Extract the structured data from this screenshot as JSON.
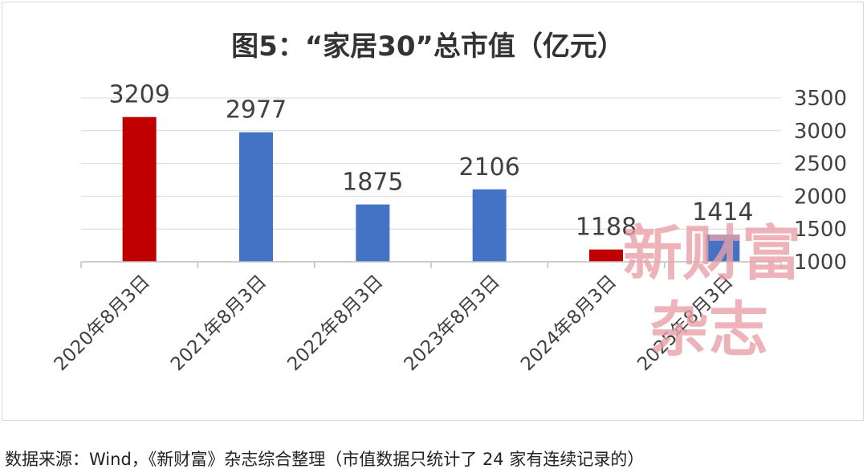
{
  "chart_data": {
    "type": "bar",
    "title": "图5：“家居30”总市值（亿元）",
    "categories": [
      "2020年8月3日",
      "2021年8月3日",
      "2022年8月3日",
      "2023年8月3日",
      "2024年8月3日",
      "2025年8月3日"
    ],
    "values": [
      3209,
      2977,
      1875,
      2106,
      1188,
      1414
    ],
    "data_labels": [
      "3209",
      "2977",
      "1875",
      "2106",
      "1188",
      "1414"
    ],
    "bar_colors": [
      "#c00000",
      "#4472c4",
      "#4472c4",
      "#4472c4",
      "#c00000",
      "#4472c4"
    ],
    "y_ticks": [
      1000,
      1500,
      2000,
      2500,
      3000,
      3500
    ],
    "ylim": [
      1000,
      3500
    ],
    "y_axis_side": "right",
    "grid": true,
    "legend": "none"
  },
  "watermark": {
    "line1": "新财富",
    "line2": "杂志",
    "color": "#e8a0a8"
  },
  "source_note": "数据来源：Wind，《新财富》杂志综合整理（市值数据只统计了 24 家有连续记录的）"
}
